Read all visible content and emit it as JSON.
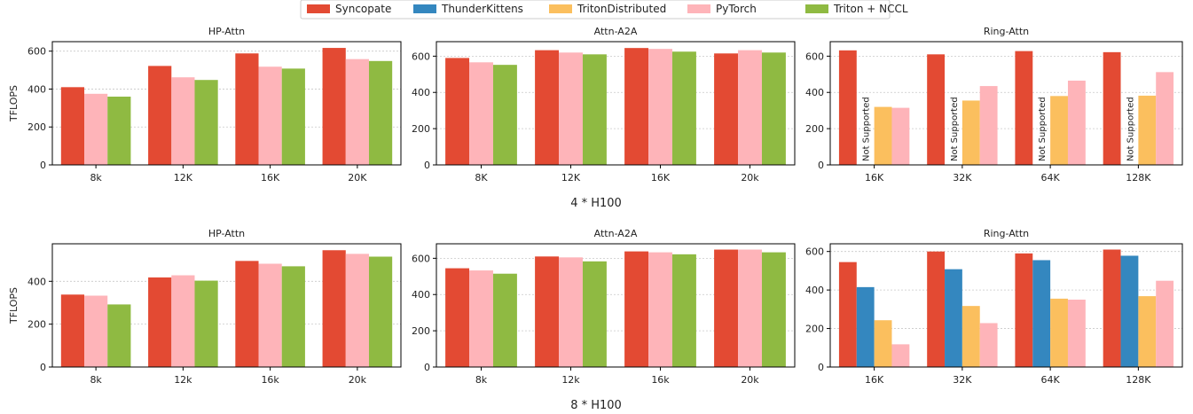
{
  "colors": {
    "Syncopate": "#e34a33",
    "ThunderKittens": "#3487bf",
    "TritonDistributed": "#fbbf5e",
    "PyTorch": "#feb4b9",
    "Triton + NCCL": "#8fba42",
    "grid": "#c8c8c8",
    "annotation": "#3487bf"
  },
  "legend": {
    "placement": "top-center",
    "items": [
      "Syncopate",
      "ThunderKittens",
      "TritonDistributed",
      "PyTorch",
      "Triton + NCCL"
    ]
  },
  "rows": [
    {
      "label": "4 * H100",
      "ylabel": "TFLOPS"
    },
    {
      "label": "8 * H100",
      "ylabel": "TFLOPS"
    }
  ],
  "chart_data": [
    {
      "type": "bar",
      "title": "HP-Attn",
      "row": 0,
      "col": 0,
      "ylabel": "TFLOPS",
      "ylim": [
        0,
        650
      ],
      "yticks": [
        0,
        200,
        400,
        600
      ],
      "grid": "y",
      "categories": [
        "8k",
        "12K",
        "16K",
        "20K"
      ],
      "series": [
        {
          "name": "Syncopate",
          "values": [
            410,
            522,
            588,
            617
          ]
        },
        {
          "name": "PyTorch",
          "values": [
            375,
            462,
            518,
            558
          ]
        },
        {
          "name": "Triton + NCCL",
          "values": [
            360,
            448,
            508,
            548
          ]
        }
      ]
    },
    {
      "type": "bar",
      "title": "Attn-A2A",
      "row": 0,
      "col": 1,
      "ylim": [
        0,
        680
      ],
      "yticks": [
        0,
        200,
        400,
        600
      ],
      "grid": "y",
      "categories": [
        "8K",
        "12K",
        "16K",
        "20k"
      ],
      "series": [
        {
          "name": "Syncopate",
          "values": [
            590,
            633,
            645,
            615
          ]
        },
        {
          "name": "PyTorch",
          "values": [
            566,
            620,
            640,
            633
          ]
        },
        {
          "name": "Triton + NCCL",
          "values": [
            552,
            610,
            625,
            620
          ]
        }
      ]
    },
    {
      "type": "bar",
      "title": "Ring-Attn",
      "row": 0,
      "col": 2,
      "ylim": [
        0,
        680
      ],
      "yticks": [
        0,
        200,
        400,
        600
      ],
      "grid": "y",
      "categories": [
        "16K",
        "32K",
        "64K",
        "128K"
      ],
      "series": [
        {
          "name": "Syncopate",
          "values": [
            632,
            610,
            628,
            622
          ]
        },
        {
          "name": "ThunderKittens",
          "values": [
            null,
            null,
            null,
            null
          ],
          "annotation": "Not Supported"
        },
        {
          "name": "TritonDistributed",
          "values": [
            320,
            355,
            380,
            382
          ]
        },
        {
          "name": "PyTorch",
          "values": [
            315,
            435,
            465,
            512
          ]
        }
      ]
    },
    {
      "type": "bar",
      "title": "HP-Attn",
      "row": 1,
      "col": 0,
      "ylabel": "TFLOPS",
      "ylim": [
        0,
        575
      ],
      "yticks": [
        0,
        200,
        400
      ],
      "grid": "y",
      "categories": [
        "8k",
        "12k",
        "16k",
        "20k"
      ],
      "series": [
        {
          "name": "Syncopate",
          "values": [
            338,
            418,
            495,
            545
          ]
        },
        {
          "name": "PyTorch",
          "values": [
            333,
            428,
            482,
            528
          ]
        },
        {
          "name": "Triton + NCCL",
          "values": [
            292,
            403,
            470,
            515
          ]
        }
      ]
    },
    {
      "type": "bar",
      "title": "Attn-A2A",
      "row": 1,
      "col": 1,
      "ylim": [
        0,
        680
      ],
      "yticks": [
        0,
        200,
        400,
        600
      ],
      "grid": "y",
      "categories": [
        "8k",
        "12k",
        "16k",
        "20k"
      ],
      "series": [
        {
          "name": "Syncopate",
          "values": [
            545,
            610,
            638,
            648
          ]
        },
        {
          "name": "PyTorch",
          "values": [
            533,
            605,
            633,
            648
          ]
        },
        {
          "name": "Triton + NCCL",
          "values": [
            515,
            583,
            622,
            633
          ]
        }
      ]
    },
    {
      "type": "bar",
      "title": "Ring-Attn",
      "row": 1,
      "col": 2,
      "ylim": [
        0,
        640
      ],
      "yticks": [
        0,
        200,
        400,
        600
      ],
      "grid": "y",
      "categories": [
        "16K",
        "32K",
        "64K",
        "128K"
      ],
      "series": [
        {
          "name": "Syncopate",
          "values": [
            545,
            600,
            590,
            610
          ]
        },
        {
          "name": "ThunderKittens",
          "values": [
            415,
            508,
            555,
            578
          ]
        },
        {
          "name": "TritonDistributed",
          "values": [
            243,
            317,
            355,
            368
          ]
        },
        {
          "name": "PyTorch",
          "values": [
            118,
            228,
            350,
            448
          ]
        }
      ]
    }
  ]
}
